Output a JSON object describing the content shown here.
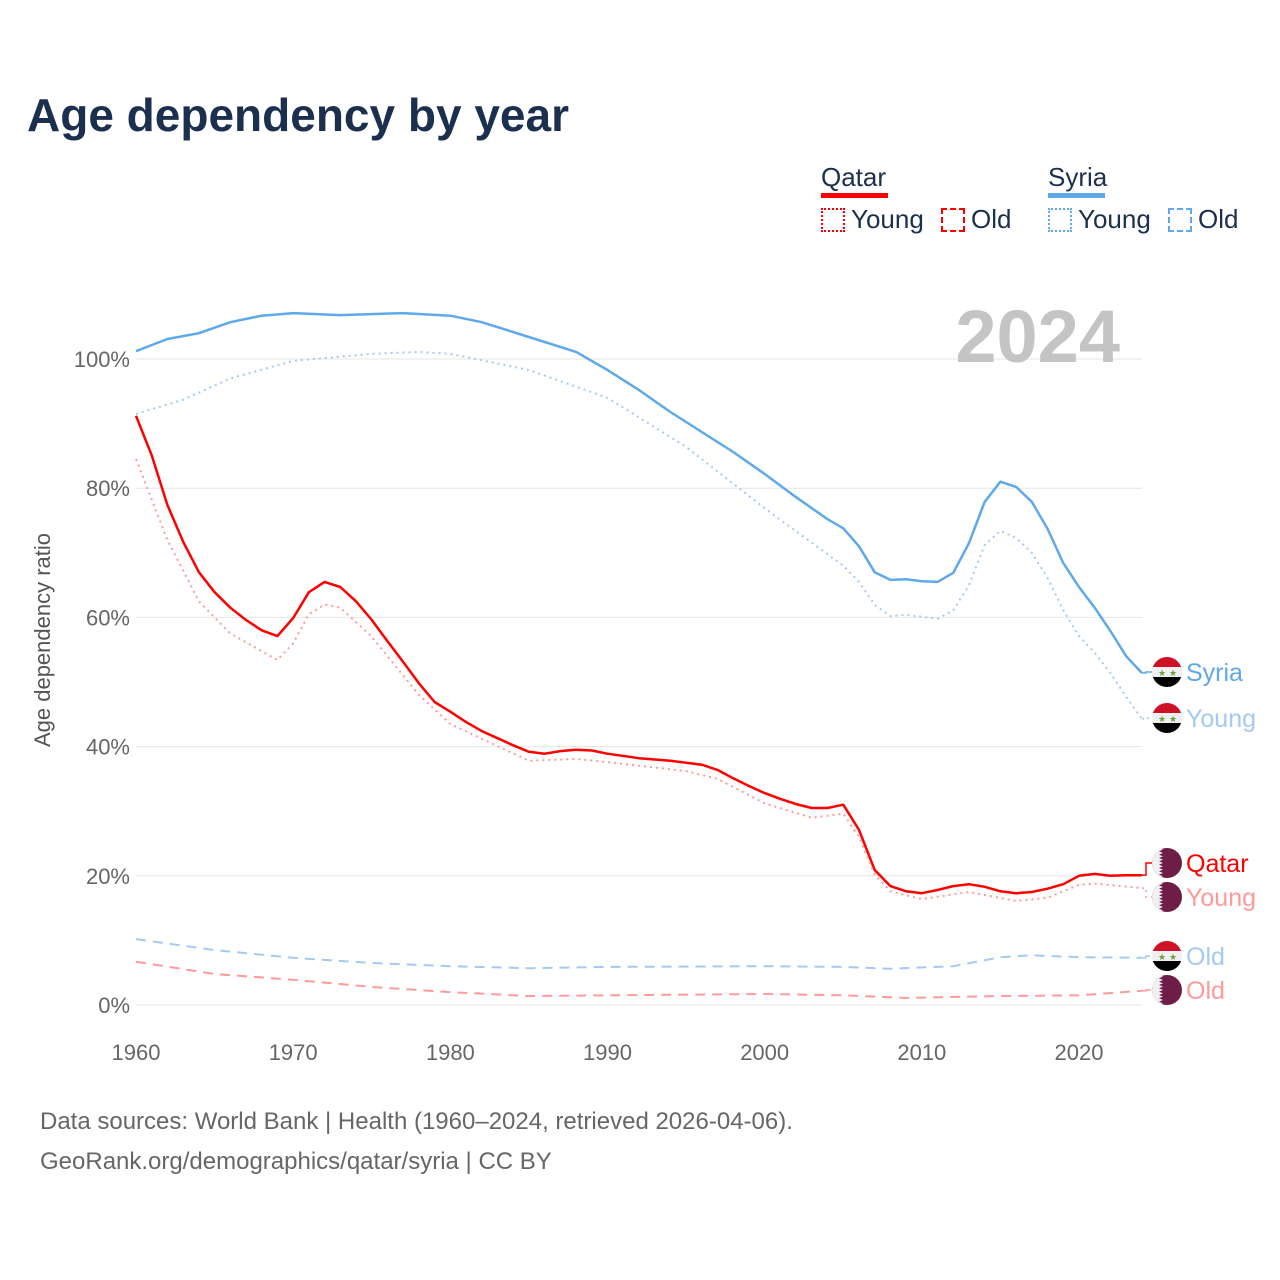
{
  "title": "Age dependency by year",
  "legend": {
    "groups": [
      {
        "name": "Qatar",
        "color": "#ff0000",
        "young": "Young",
        "old": "Old"
      },
      {
        "name": "Syria",
        "color": "#5fa8ec",
        "young": "Young",
        "old": "Old"
      }
    ]
  },
  "year_label": "2024",
  "end_labels": {
    "syria_total": "Syria",
    "syria_young": "Young",
    "syria_old": "Old",
    "qatar_total": "Qatar",
    "qatar_young": "Young",
    "qatar_old": "Old"
  },
  "source_lines": [
    "Data sources: World Bank | Health (1960–2024, retrieved 2026-04-06).",
    "GeoRank.org/demographics/qatar/syria | CC BY"
  ],
  "chart_data": {
    "type": "line",
    "title": "Age dependency by year",
    "xlabel": "",
    "ylabel": "Age dependency ratio",
    "xlim": [
      1960,
      2024
    ],
    "ylim": [
      0,
      100
    ],
    "x_ticks": [
      1960,
      1970,
      1980,
      1990,
      2000,
      2010,
      2020
    ],
    "y_ticks": [
      "0%",
      "20%",
      "40%",
      "60%",
      "80%",
      "100%"
    ],
    "grid": true,
    "series": [
      {
        "name": "Syria",
        "style": "solid",
        "color": "#5fa8ec",
        "x": [
          1960,
          1962,
          1964,
          1966,
          1968,
          1970,
          1973,
          1977,
          1980,
          1982,
          1985,
          1988,
          1990,
          1992,
          1994,
          1996,
          1998,
          2000,
          2002,
          2004,
          2005,
          2006,
          2007,
          2008,
          2009,
          2010,
          2011,
          2012,
          2013,
          2014,
          2015,
          2016,
          2017,
          2018,
          2019,
          2020,
          2021,
          2022,
          2023,
          2024
        ],
        "y": [
          101.2,
          103.1,
          104,
          105.7,
          106.7,
          107.1,
          106.8,
          107.1,
          106.7,
          105.7,
          103.4,
          101.1,
          98.3,
          95.2,
          91.8,
          88.7,
          85.6,
          82.2,
          78.6,
          75.2,
          73.8,
          71,
          67,
          65.8,
          65.9,
          65.6,
          65.5,
          66.9,
          71.5,
          77.9,
          81,
          80.2,
          77.9,
          73.7,
          68.4,
          64.7,
          61.5,
          57.9,
          54,
          51.4
        ]
      },
      {
        "name": "Syria Young",
        "style": "dotted",
        "color": "#a4c9f2",
        "x": [
          1960,
          1963,
          1966,
          1970,
          1975,
          1978,
          1980,
          1985,
          1990,
          1995,
          2000,
          2005,
          2006,
          2007,
          2008,
          2009,
          2011,
          2012,
          2013,
          2014,
          2015,
          2016,
          2017,
          2018,
          2019,
          2020,
          2021,
          2022,
          2023,
          2024
        ],
        "y": [
          91.5,
          93.7,
          97,
          99.7,
          100.8,
          101.1,
          100.8,
          98.3,
          94,
          86.4,
          76.9,
          68,
          65.5,
          61.9,
          60.2,
          60.4,
          59.8,
          61.1,
          65,
          71.2,
          73.4,
          72.3,
          70,
          66.1,
          61.1,
          57.1,
          54.5,
          51.4,
          47.7,
          44.3
        ]
      },
      {
        "name": "Syria Old",
        "style": "dashed",
        "color": "#a4c9f2",
        "x": [
          1960,
          1965,
          1970,
          1975,
          1980,
          1985,
          1990,
          2000,
          2005,
          2008,
          2012,
          2015,
          2017,
          2020,
          2024
        ],
        "y": [
          10.2,
          8.5,
          7.3,
          6.5,
          6,
          5.7,
          5.9,
          6,
          5.9,
          5.6,
          6,
          7.4,
          7.7,
          7.4,
          7.3
        ]
      },
      {
        "name": "Qatar",
        "style": "solid",
        "color": "#ff0000",
        "x": [
          1960,
          1961,
          1962,
          1963,
          1964,
          1965,
          1966,
          1967,
          1968,
          1969,
          1970,
          1971,
          1972,
          1973,
          1974,
          1975,
          1976,
          1977,
          1978,
          1979,
          1980,
          1981,
          1982,
          1983,
          1984,
          1985,
          1986,
          1987,
          1988,
          1989,
          1990,
          1992,
          1994,
          1996,
          1997,
          1998,
          1999,
          2000,
          2001,
          2002,
          2003,
          2004,
          2005,
          2006,
          2007,
          2008,
          2009,
          2010,
          2011,
          2012,
          2013,
          2014,
          2015,
          2016,
          2017,
          2018,
          2019,
          2020,
          2021,
          2022,
          2023,
          2024
        ],
        "y": [
          91.2,
          85.1,
          77.4,
          71.7,
          67,
          63.9,
          61.5,
          59.6,
          58,
          57.1,
          59.9,
          63.9,
          65.5,
          64.7,
          62.5,
          59.6,
          56.3,
          53.1,
          49.8,
          46.9,
          45.4,
          43.8,
          42.4,
          41.3,
          40.2,
          39.2,
          38.9,
          39.3,
          39.5,
          39.4,
          38.9,
          38.2,
          37.8,
          37.2,
          36.4,
          35.1,
          33.9,
          32.8,
          31.9,
          31.1,
          30.5,
          30.5,
          31,
          27.1,
          20.9,
          18.4,
          17.6,
          17.3,
          17.8,
          18.4,
          18.7,
          18.3,
          17.6,
          17.3,
          17.5,
          18,
          18.7,
          20,
          20.3,
          20,
          20.1,
          20.1
        ]
      },
      {
        "name": "Qatar Young",
        "style": "dotted",
        "color": "#ff9a9a",
        "x": [
          1960,
          1962,
          1964,
          1966,
          1969,
          1970,
          1971,
          1972,
          1973,
          1975,
          1978,
          1980,
          1985,
          1988,
          1990,
          1995,
          1997,
          2000,
          2003,
          2005,
          2006,
          2007,
          2008,
          2010,
          2013,
          2016,
          2018,
          2020,
          2021,
          2024
        ],
        "y": [
          84.5,
          72,
          62.5,
          57.5,
          53.4,
          56,
          60.5,
          62,
          61.5,
          57,
          48,
          43.5,
          37.8,
          38.1,
          37.6,
          36.2,
          35,
          31.2,
          29,
          29.6,
          26,
          20.2,
          17.6,
          16.4,
          17.5,
          16.1,
          16.6,
          18.6,
          18.8,
          18.1
        ]
      },
      {
        "name": "Qatar Old",
        "style": "dashed",
        "color": "#ff9a9a",
        "x": [
          1960,
          1965,
          1970,
          1975,
          1980,
          1985,
          1990,
          2000,
          2005,
          2009,
          2015,
          2020,
          2024
        ],
        "y": [
          6.7,
          4.8,
          3.9,
          2.8,
          2,
          1.4,
          1.5,
          1.7,
          1.5,
          1.1,
          1.4,
          1.5,
          2.2
        ]
      }
    ]
  }
}
